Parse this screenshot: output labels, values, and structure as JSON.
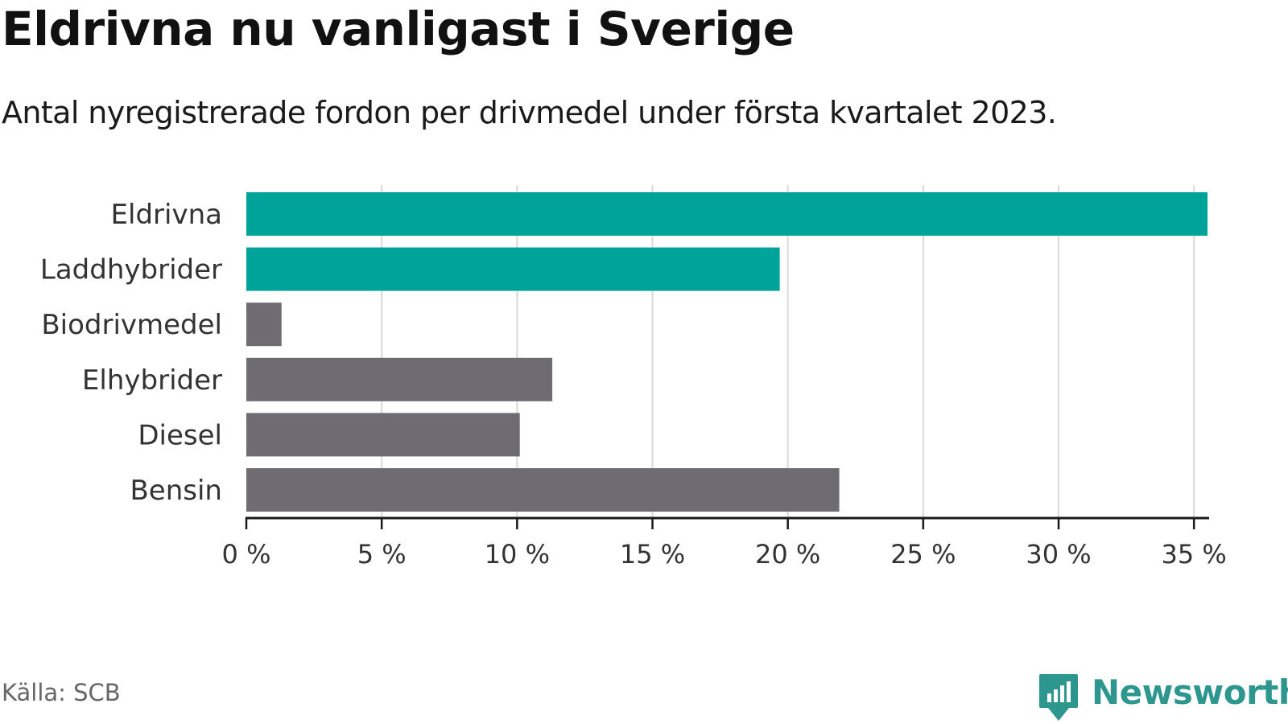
{
  "title": "Eldrivna nu vanligast i Sverige",
  "subtitle": "Antal nyregistrerade fordon per drivmedel under första kvartalet 2023.",
  "source": "Källa: SCB",
  "brand": {
    "name": "Newsworthy",
    "icon": "newsworthy-logo-icon",
    "color": "#2d978f"
  },
  "colors": {
    "highlight": "#00a39a",
    "default": "#6e6c72",
    "grid": "#d9d9d9",
    "axis": "#1a1a1a"
  },
  "chart_data": {
    "type": "bar",
    "orientation": "horizontal",
    "categories": [
      "Eldrivna",
      "Laddhybrider",
      "Biodrivmedel",
      "Elhybrider",
      "Diesel",
      "Bensin"
    ],
    "values": [
      35.5,
      19.7,
      1.3,
      11.3,
      10.1,
      21.9
    ],
    "highlighted": [
      true,
      true,
      false,
      false,
      false,
      false
    ],
    "xlim": [
      0,
      35.5
    ],
    "xticks": [
      0,
      5,
      10,
      15,
      20,
      25,
      30,
      35
    ],
    "xtick_labels": [
      "0 %",
      "5 %",
      "10 %",
      "15 %",
      "20 %",
      "25 %",
      "30 %",
      "35 %"
    ],
    "grid": true,
    "legend": "none"
  }
}
